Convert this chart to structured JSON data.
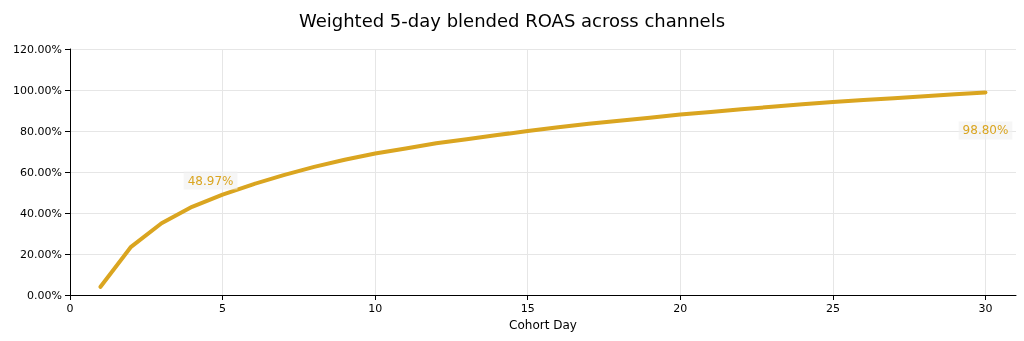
{
  "chart_data": {
    "type": "line",
    "title": "Weighted 5-day blended ROAS across channels",
    "xlabel": "Cohort Day",
    "x": [
      1,
      2,
      3,
      4,
      5,
      6,
      7,
      8,
      9,
      10,
      11,
      12,
      13,
      14,
      15,
      16,
      17,
      18,
      19,
      20,
      21,
      22,
      23,
      24,
      25,
      26,
      27,
      28,
      29,
      30
    ],
    "series": [
      {
        "color": "#daa520",
        "values": [
          4,
          23.5,
          35,
          43,
          48.97,
          54,
          58.5,
          62.5,
          66,
          69,
          71.5,
          74,
          76,
          78,
          80,
          81.8,
          83.5,
          85,
          86.5,
          88,
          89.3,
          90.6,
          91.8,
          93,
          94.2,
          95.1,
          96,
          96.9,
          97.9,
          98.8
        ],
        "value_labels": [
          null,
          null,
          null,
          null,
          "48.97%",
          null,
          null,
          null,
          null,
          null,
          null,
          null,
          null,
          null,
          null,
          null,
          null,
          null,
          null,
          null,
          null,
          null,
          null,
          null,
          null,
          null,
          null,
          null,
          null,
          "98.80%"
        ]
      }
    ],
    "xlim": [
      0,
      31
    ],
    "xticks": [
      0,
      5,
      10,
      15,
      20,
      25,
      30
    ],
    "ylim": [
      0,
      120
    ],
    "yticks": [
      {
        "value": 0,
        "label": "0.00%"
      },
      {
        "value": 20,
        "label": "20.00%"
      },
      {
        "value": 40,
        "label": "40.00%"
      },
      {
        "value": 60,
        "label": "60.00%"
      },
      {
        "value": 80,
        "label": "80.00%"
      },
      {
        "value": 100,
        "label": "100.00%"
      },
      {
        "value": 120,
        "label": "120.00%"
      }
    ],
    "grid": true,
    "marker": "none",
    "line_style": "solid"
  }
}
